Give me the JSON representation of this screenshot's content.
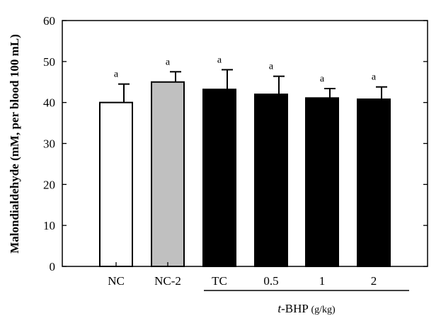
{
  "chart_data": {
    "type": "bar",
    "title": "",
    "xlabel": "",
    "ylabel": "Malondialdehyde (mM, per blood 100 mL)",
    "ylim": [
      0,
      60
    ],
    "yticks": [
      0,
      10,
      20,
      30,
      40,
      50,
      60
    ],
    "categories": [
      "NC",
      "NC-2",
      "TC",
      "0.5",
      "1",
      "2"
    ],
    "values": [
      40.0,
      45.0,
      43.2,
      42.0,
      41.1,
      40.8
    ],
    "errors": [
      4.5,
      2.5,
      4.8,
      4.4,
      2.3,
      3.0
    ],
    "significance": [
      "a",
      "a",
      "a",
      "a",
      "a",
      "a"
    ],
    "bar_colors": [
      "#ffffff",
      "#c0c0c0",
      "#000000",
      "#000000",
      "#000000",
      "#000000"
    ],
    "group_label": {
      "prefix": "t",
      "main": "-BHP",
      "unit": "(g/kg)"
    },
    "grid": false,
    "legend": "none"
  }
}
